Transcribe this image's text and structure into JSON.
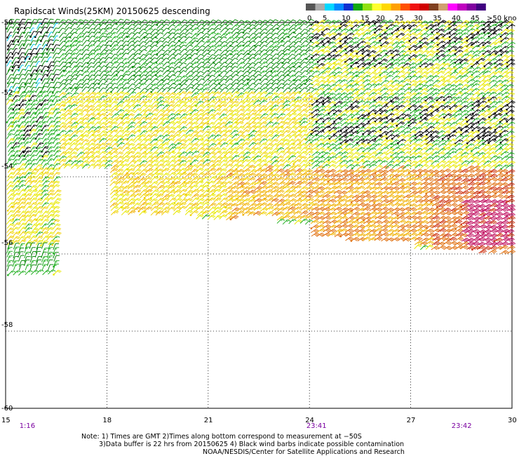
{
  "title": "Rapidscat Winds(25KM) 20150625 descending",
  "scale": {
    "labels": [
      "0",
      "5",
      "10",
      "15",
      "20",
      "25",
      "30",
      "35",
      "40",
      "45",
      ">50 knots"
    ],
    "colors": [
      "#555555",
      "#aaaaaa",
      "#00d8ff",
      "#0088ff",
      "#1030d0",
      "#10a810",
      "#90e010",
      "#ffff30",
      "#ffd800",
      "#ffa000",
      "#ff5000",
      "#f01010",
      "#d00000",
      "#804020",
      "#d0a070",
      "#ff00ff",
      "#c000c0",
      "#8000a0",
      "#400080"
    ]
  },
  "chart_data": {
    "type": "scatter",
    "title": "Rapidscat Winds(25KM) 20150625 descending",
    "x_ticks": [
      "15",
      "18",
      "21",
      "24",
      "27",
      "30"
    ],
    "y_ticks": [
      "-50",
      "-52",
      "-54",
      "-56",
      "-58",
      "-60"
    ],
    "xlim": [
      15,
      30
    ],
    "ylim": [
      -60,
      -50
    ],
    "grid": true,
    "time_labels": [
      {
        "x": 15.7,
        "text": "1:16"
      },
      {
        "x": 24.2,
        "text": "23:41"
      },
      {
        "x": 28.5,
        "text": "23:42"
      }
    ],
    "wind_regions": [
      {
        "x": [
          15,
          16.5
        ],
        "y": [
          -51.9,
          -50
        ],
        "knots": 12,
        "dir": 210
      },
      {
        "x": [
          16.5,
          18.5
        ],
        "y": [
          -51.9,
          -50
        ],
        "knots": 14,
        "dir": 220
      },
      {
        "x": [
          18.5,
          24
        ],
        "y": [
          -51.9,
          -50
        ],
        "knots": 13,
        "dir": 225
      },
      {
        "x": [
          24,
          30
        ],
        "y": [
          -51.9,
          -50
        ],
        "knots": 20,
        "dir": 230
      },
      {
        "x": [
          15,
          16.5
        ],
        "y": [
          -53.8,
          -51.9
        ],
        "knots": 18,
        "dir": 215
      },
      {
        "x": [
          16.5,
          24
        ],
        "y": [
          -53.8,
          -51.9
        ],
        "knots": 22,
        "dir": 225
      },
      {
        "x": [
          24,
          30
        ],
        "y": [
          -53.8,
          -51.9
        ],
        "knots": 20,
        "dir": 230
      },
      {
        "x": [
          15,
          16.5
        ],
        "y": [
          -55.8,
          -53.8
        ],
        "knots": 22,
        "dir": 220
      },
      {
        "x": [
          15,
          16.5
        ],
        "y": [
          -56.5,
          -55.8
        ],
        "knots": 15,
        "dir": 200
      },
      {
        "x": [
          18,
          21.5
        ],
        "y": [
          -55,
          -53.8
        ],
        "knots": 24,
        "dir": 225
      },
      {
        "x": [
          21.5,
          24
        ],
        "y": [
          -55.2,
          -53.8
        ],
        "knots": 28,
        "dir": 230
      },
      {
        "x": [
          24,
          27.5
        ],
        "y": [
          -55.8,
          -53.8
        ],
        "knots": 30,
        "dir": 235
      },
      {
        "x": [
          27.5,
          30
        ],
        "y": [
          -56,
          -53.8
        ],
        "knots": 34,
        "dir": 235
      },
      {
        "x": [
          28.5,
          30
        ],
        "y": [
          -55.8,
          -54.6
        ],
        "knots": 42,
        "dir": 240
      }
    ],
    "contaminated_regions": [
      {
        "x": [
          15,
          16.5
        ],
        "y": [
          -51.5,
          -50
        ]
      },
      {
        "x": [
          24,
          30
        ],
        "y": [
          -51.2,
          -50
        ]
      },
      {
        "x": [
          15.2,
          16.2
        ],
        "y": [
          -53.5,
          -52
        ]
      },
      {
        "x": [
          24,
          30
        ],
        "y": [
          -53.2,
          -52
        ]
      }
    ]
  },
  "notes": [
    "Note: 1) Times are GMT 2)Times along bottom correspond to measurement at −50S",
    "3)Data buffer is 22 hrs from 20150625 4) Black wind barbs indicate possible contamination",
    "NOAA/NESDIS/Center for Satellite Applications and Research"
  ],
  "time_color": "#7a00a0"
}
